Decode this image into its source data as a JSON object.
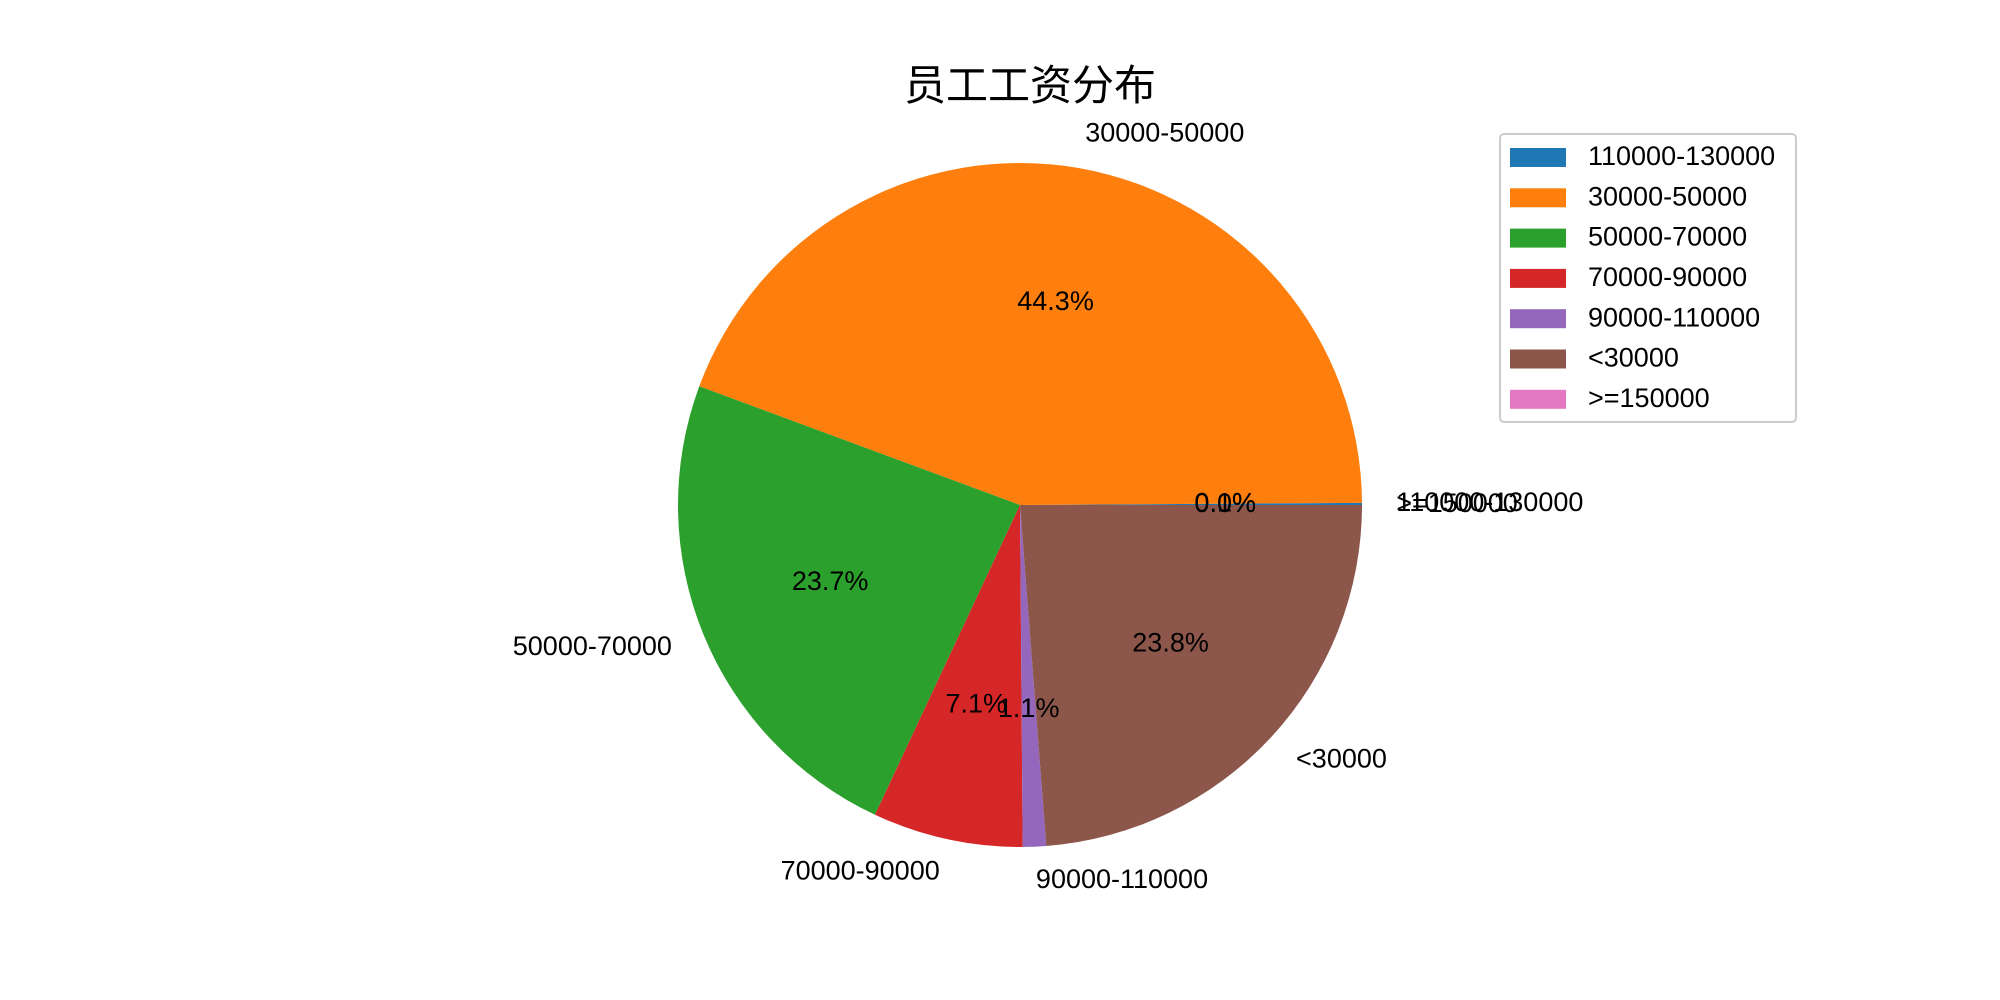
{
  "chart_data": {
    "type": "pie",
    "title": "员工工资分布",
    "categories": [
      "110000-130000",
      "30000-50000",
      "50000-70000",
      "70000-90000",
      "90000-110000",
      "<30000",
      ">=150000"
    ],
    "values": [
      0.1,
      44.3,
      23.7,
      7.1,
      1.1,
      23.8,
      0.0
    ],
    "percent_labels": [
      "0.1%",
      "44.3%",
      "23.7%",
      "7.1%",
      "1.1%",
      "23.8%",
      "0.0%"
    ],
    "colors": [
      "#1f77b4",
      "#ff7f0e",
      "#2ca02c",
      "#d62728",
      "#9467bd",
      "#8c564b",
      "#e377c2"
    ],
    "start_angle_deg": 0,
    "direction": "counterclockwise",
    "legend": {
      "position": "top-right",
      "entries": [
        "110000-130000",
        "30000-50000",
        "50000-70000",
        "70000-90000",
        "90000-110000",
        "<30000",
        ">=150000"
      ]
    }
  }
}
